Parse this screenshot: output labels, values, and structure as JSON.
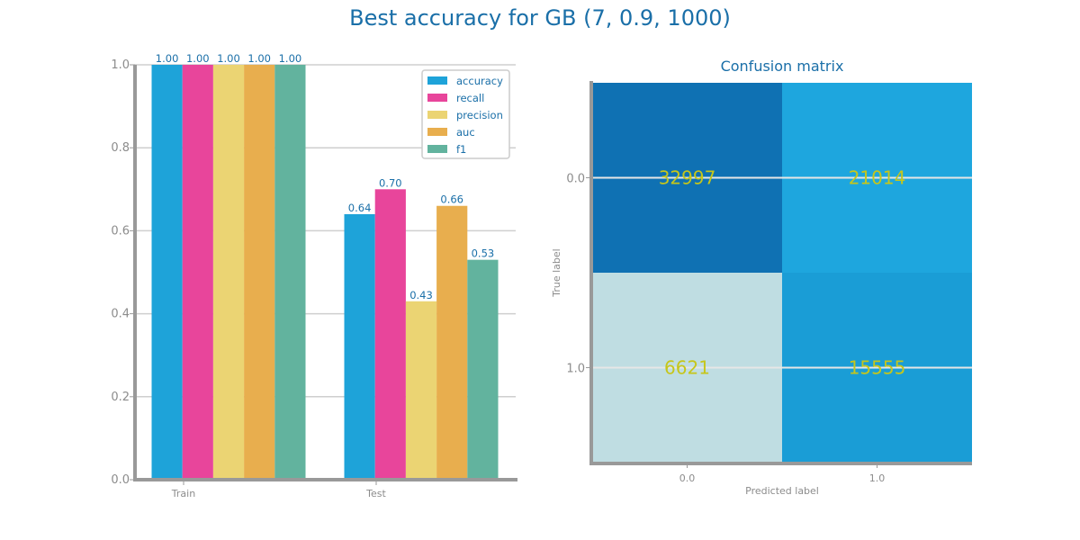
{
  "title": "Best accuracy for GB (7, 0.9, 1000)",
  "chart_data": [
    {
      "type": "bar",
      "categories": [
        "Train",
        "Test"
      ],
      "series": [
        {
          "name": "accuracy",
          "color": "#1ea3d9",
          "values": [
            1.0,
            0.64
          ],
          "labels": [
            "1.00",
            "0.64"
          ]
        },
        {
          "name": "recall",
          "color": "#e8459b",
          "values": [
            1.0,
            0.7
          ],
          "labels": [
            "1.00",
            "0.70"
          ]
        },
        {
          "name": "precision",
          "color": "#ebd473",
          "values": [
            1.0,
            0.43
          ],
          "labels": [
            "1.00",
            "0.43"
          ]
        },
        {
          "name": "auc",
          "color": "#e8ae4e",
          "values": [
            1.0,
            0.66
          ],
          "labels": [
            "1.00",
            "0.66"
          ]
        },
        {
          "name": "f1",
          "color": "#62b39e",
          "values": [
            1.0,
            0.53
          ],
          "labels": [
            "1.00",
            "0.53"
          ]
        }
      ],
      "ylim": [
        0,
        1.0
      ],
      "yticks": [
        "0.0",
        "0.2",
        "0.4",
        "0.6",
        "0.8",
        "1.0"
      ],
      "grid": true,
      "legend_position": "top-right",
      "xlabel": "",
      "ylabel": ""
    },
    {
      "type": "heatmap",
      "title": "Confusion matrix",
      "xlabel": "Predicted label",
      "ylabel": "True label",
      "x_categories": [
        "0.0",
        "1.0"
      ],
      "y_categories": [
        "0.0",
        "1.0"
      ],
      "values": [
        [
          32997,
          21014
        ],
        [
          6621,
          15555
        ]
      ],
      "cell_colors": [
        [
          "#0f71b3",
          "#1ea6de"
        ],
        [
          "#bfdde2",
          "#1a9dd6"
        ]
      ]
    }
  ]
}
